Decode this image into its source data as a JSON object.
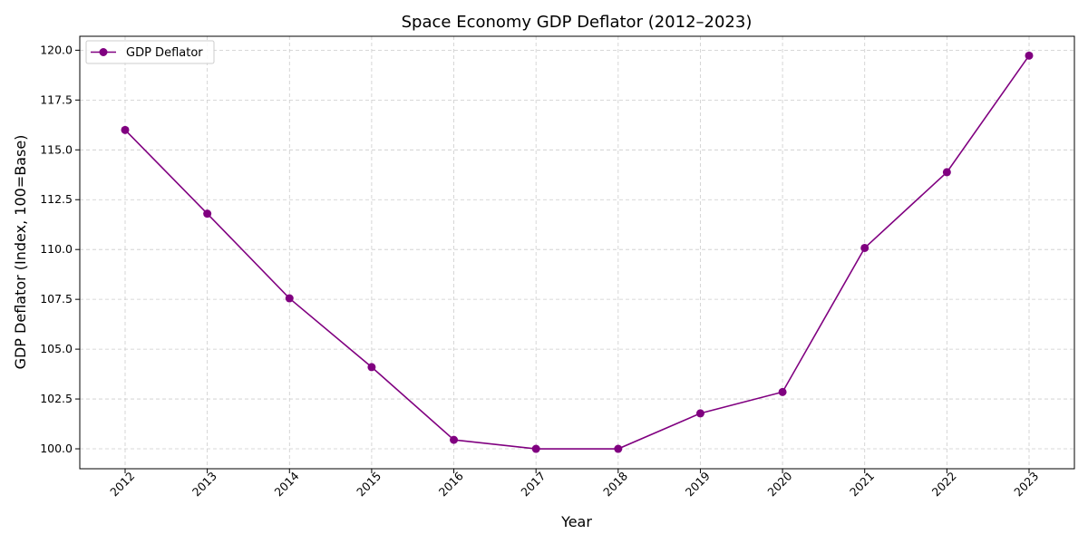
{
  "chart_data": {
    "type": "line",
    "title": "Space Economy GDP Deflator (2012–2023)",
    "xlabel": "Year",
    "ylabel": "GDP Deflator (Index, 100=Base)",
    "categories": [
      "2012",
      "2013",
      "2014",
      "2015",
      "2016",
      "2017",
      "2018",
      "2019",
      "2020",
      "2021",
      "2022",
      "2023"
    ],
    "series": [
      {
        "name": "GDP Deflator",
        "values": [
          116.0,
          111.8,
          107.55,
          104.1,
          100.45,
          100.0,
          100.0,
          101.78,
          102.85,
          110.08,
          113.88,
          119.73
        ]
      }
    ],
    "ylim": [
      99.0,
      120.7
    ],
    "yticks": [
      "100.0",
      "102.5",
      "105.0",
      "107.5",
      "110.0",
      "112.5",
      "115.0",
      "117.5",
      "120.0"
    ],
    "grid": true,
    "legend_position": "top-left",
    "colors": {
      "series": "#800080",
      "grid": "#cccccc"
    }
  }
}
